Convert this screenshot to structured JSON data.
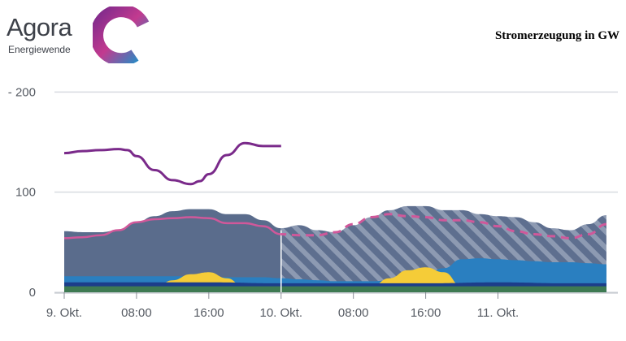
{
  "logo": {
    "name": "Agora",
    "subtitle": "Energiewende"
  },
  "chart_data": {
    "type": "area",
    "title": "Stromerzeugung in GW",
    "ylim": [
      0,
      210
    ],
    "y_ticks": [
      {
        "value": 0,
        "label": "0"
      },
      {
        "value": 100,
        "label": "100"
      },
      {
        "value": 200,
        "label": "- 200"
      }
    ],
    "xlim": [
      0,
      61
    ],
    "x_ticks": [
      {
        "value": 0,
        "label": "9. Okt."
      },
      {
        "value": 8,
        "label": "08:00"
      },
      {
        "value": 16,
        "label": "16:00"
      },
      {
        "value": 24,
        "label": "10. Okt."
      },
      {
        "value": 32,
        "label": "08:00"
      },
      {
        "value": 40,
        "label": "16:00"
      },
      {
        "value": 48,
        "label": "11. Okt."
      }
    ],
    "forecast_start_hour": 24,
    "colors": {
      "total": "#5a6c8c",
      "forecast_hatch": "#5e6f8f",
      "solar": "#f5cc38",
      "wind": "#2a7fc0",
      "hydro": "#1c3d8a",
      "biomass": "#3e7a52",
      "price": "#7a2a8a",
      "load": "#d0589a",
      "grid": "#d8dbe0"
    },
    "series": [
      {
        "type": "area",
        "hours": [
          0,
          2,
          4,
          6,
          8,
          10,
          12,
          14,
          16,
          18,
          20,
          22,
          24,
          26,
          28,
          30,
          32,
          34,
          36,
          38,
          40,
          42,
          44,
          46,
          48,
          50,
          52,
          54,
          56,
          58,
          60
        ],
        "values": [
          61,
          60,
          60,
          62,
          70,
          76,
          81,
          83,
          83,
          78,
          78,
          72,
          64,
          67,
          62,
          60,
          67,
          75,
          82,
          86,
          86,
          82,
          82,
          78,
          76,
          75,
          70,
          64,
          62,
          68,
          77
        ]
      },
      {
        "type": "area",
        "hours": [
          0,
          2,
          4,
          6,
          8,
          10,
          12,
          14,
          16,
          18,
          20,
          22,
          24,
          26,
          28,
          30,
          32,
          34,
          36,
          38,
          40,
          42,
          44,
          46,
          48,
          50,
          52,
          54,
          56,
          58,
          60
        ],
        "values": [
          16,
          16,
          16,
          16,
          16,
          16,
          16,
          16,
          15,
          15,
          15,
          15,
          14,
          13,
          12,
          11,
          11,
          11,
          12,
          14,
          18,
          24,
          33,
          34,
          33,
          32,
          31,
          30,
          30,
          29,
          28
        ]
      },
      {
        "type": "area",
        "hours": [
          0,
          4,
          8,
          10,
          12,
          14,
          16,
          18,
          20,
          24,
          28,
          30,
          32,
          34,
          36,
          38,
          40,
          42,
          44,
          48,
          52,
          56,
          60
        ],
        "values": [
          0,
          0,
          0,
          4,
          12,
          18,
          20,
          14,
          4,
          0,
          0,
          0,
          0,
          6,
          14,
          22,
          25,
          20,
          6,
          0,
          0,
          0,
          0
        ]
      },
      {
        "type": "area",
        "hours": [
          0,
          8,
          16,
          24,
          32,
          40,
          48,
          56,
          60
        ],
        "values": [
          10,
          10,
          10,
          9,
          9,
          9,
          10,
          9,
          9
        ]
      },
      {
        "type": "area",
        "hours": [
          0,
          60
        ],
        "values": [
          6,
          6
        ]
      },
      {
        "type": "line",
        "hours": [
          0,
          2,
          4,
          6,
          7,
          8,
          10,
          12,
          14,
          15,
          16,
          18,
          20,
          22,
          24
        ],
        "values": [
          139,
          141,
          142,
          143,
          142,
          136,
          122,
          112,
          108,
          111,
          118,
          137,
          149,
          146,
          146
        ]
      },
      {
        "type": "line",
        "hours": [
          0,
          2,
          4,
          6,
          8,
          10,
          12,
          14,
          16,
          18,
          20,
          22,
          24,
          26,
          28,
          30,
          32,
          34,
          36,
          38,
          40,
          42,
          44,
          46,
          48,
          50,
          52,
          54,
          56,
          58,
          60
        ],
        "values": [
          54,
          55,
          57,
          62,
          70,
          73,
          74,
          75,
          74,
          69,
          69,
          66,
          58,
          57,
          57,
          60,
          68,
          75,
          78,
          76,
          75,
          72,
          72,
          70,
          66,
          61,
          58,
          56,
          54,
          58,
          68
        ]
      }
    ]
  }
}
